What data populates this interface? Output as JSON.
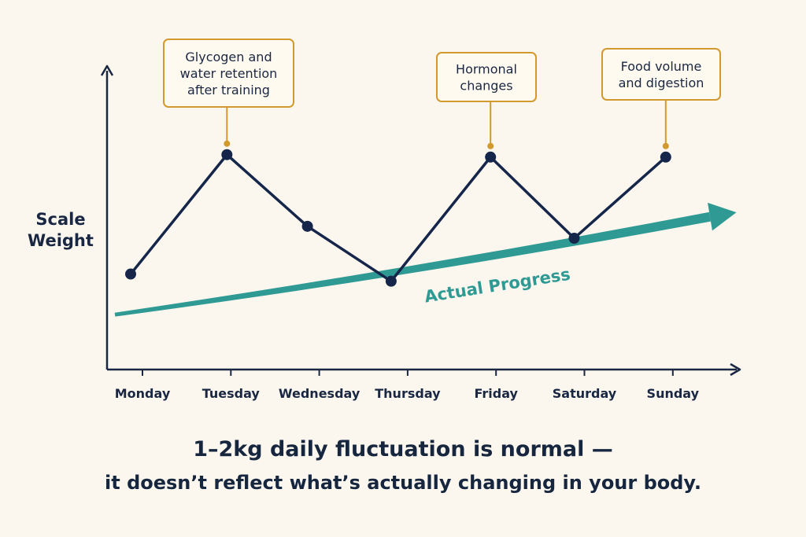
{
  "chart_data": {
    "type": "line",
    "ylabel": "Scale\nWeight",
    "categories": [
      "Monday",
      "Tuesday",
      "Wednesday",
      "Thursday",
      "Friday",
      "Saturday",
      "Sunday"
    ],
    "series": [
      {
        "name": "",
        "values": [
          40,
          90,
          60,
          37,
          89,
          55,
          89
        ]
      }
    ],
    "ylim": [
      0,
      110
    ],
    "trend": {
      "label": "Actual Progress",
      "from": 23,
      "to": 64
    },
    "annotations": [
      {
        "category": "Tuesday",
        "text": "Glycogen and\nwater retention\nafter training"
      },
      {
        "category": "Friday",
        "text": "Hormonal\nchanges"
      },
      {
        "category": "Sunday",
        "text": "Food volume\nand digestion"
      }
    ],
    "colors": {
      "line": "#15264a",
      "trend": "#2f9a93",
      "annotation": "#d29a2e",
      "axis": "#1a2742"
    }
  },
  "caption": {
    "line1": "1–2kg daily fluctuation is normal —",
    "line2": "it doesn’t reflect what’s actually changing in your body."
  }
}
